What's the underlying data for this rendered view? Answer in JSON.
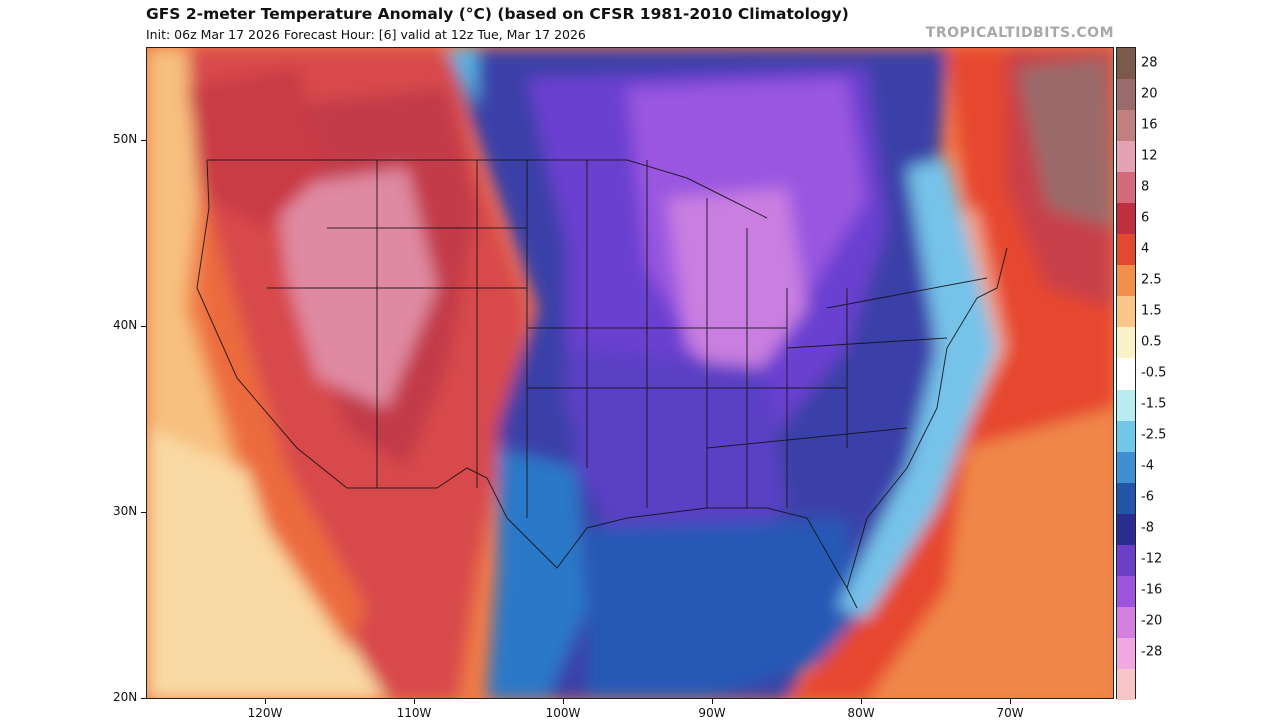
{
  "header": {
    "title": "GFS 2-meter Temperature Anomaly (°C) (based on CFSR 1981-2010 Climatology)",
    "subtitle": "Init: 06z Mar 17 2026   Forecast Hour: [6]   valid at 12z Tue, Mar 17 2026",
    "brand": "TROPICALTIDBITS.COM"
  },
  "map": {
    "lat_labels": [
      "50N",
      "40N",
      "30N",
      "20N"
    ],
    "lon_labels": [
      "120W",
      "110W",
      "100W",
      "90W",
      "80W",
      "70W"
    ]
  },
  "colorbar": {
    "labels": [
      "28",
      "20",
      "16",
      "12",
      "8",
      "6",
      "4",
      "2.5",
      "1.5",
      "0.5",
      "-0.5",
      "-1.5",
      "-2.5",
      "-4",
      "-6",
      "-8",
      "-12",
      "-16",
      "-20",
      "-28"
    ],
    "colors": [
      "#7a5a4a",
      "#9a6b6b",
      "#c0807f",
      "#e4a3b4",
      "#d26a7a",
      "#bf2f3f",
      "#e24a2d",
      "#f1904c",
      "#f8c787",
      "#fbf1c6",
      "#ffffff",
      "#b7ecf0",
      "#71c7e8",
      "#3f8fd1",
      "#2356ab",
      "#2a2d8f",
      "#6b3fc6",
      "#9b55dd",
      "#d37fdf",
      "#f0a8e0",
      "#f6c5c5"
    ]
  }
}
